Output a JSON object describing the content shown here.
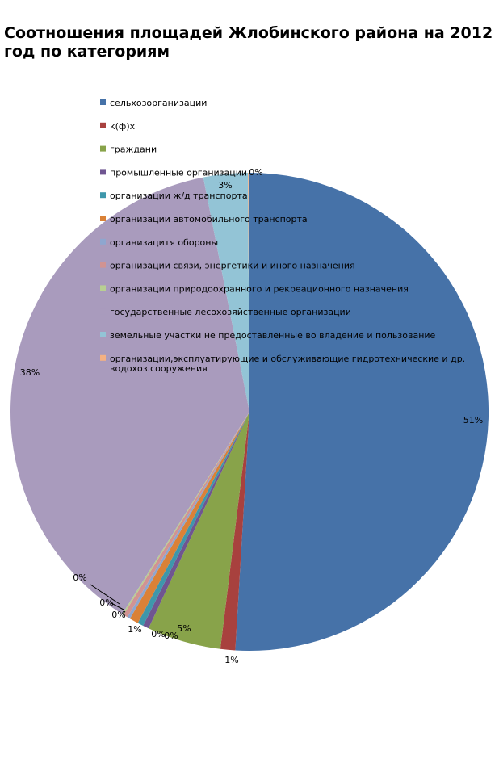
{
  "chart_data": {
    "type": "pie",
    "title": "Соотношения площадей Жлобинского района на 2012 год по категориям",
    "legend_position": "top-center",
    "series": [
      {
        "name": "сельхозорганизации",
        "value": 51,
        "label": "51%",
        "color": "#4672A8"
      },
      {
        "name": "к(ф)х",
        "value": 1,
        "label": "1%",
        "color": "#A8413E"
      },
      {
        "name": "граждани",
        "value": 5,
        "label": "5%",
        "color": "#88A34A"
      },
      {
        "name": "промышленные организации",
        "value": 0.4,
        "label": "0%",
        "color": "#6F5591"
      },
      {
        "name": "организации ж/д транспорта",
        "value": 0.4,
        "label": "0%",
        "color": "#3E97AB"
      },
      {
        "name": "организации автомобильного транспорта",
        "value": 0.6,
        "label": "1%",
        "color": "#DA8137"
      },
      {
        "name": "организацитя обороны",
        "value": 0.2,
        "label": "0%",
        "color": "#8EA6CF"
      },
      {
        "name": "организации связи, энергетики и иного назначения",
        "value": 0.3,
        "label": "0%",
        "color": "#D19392"
      },
      {
        "name": "организации природоохранного и рекреационного назначения",
        "value": 0.1,
        "label": "0%",
        "color": "#B8CF92"
      },
      {
        "name": "государственные лесохозяйственные организации",
        "value": 38,
        "label": "38%",
        "color": "#A99BBD"
      },
      {
        "name": "земельные участки не предоставленные во владение и пользование",
        "value": 3,
        "label": "3%",
        "color": "#93C4D6"
      },
      {
        "name": "организации,эксплуатирующие и обслуживающие гидротехнические и др. водохоз.сооружения",
        "value": 0.1,
        "label": "0%",
        "color": "#F4B183"
      }
    ]
  }
}
